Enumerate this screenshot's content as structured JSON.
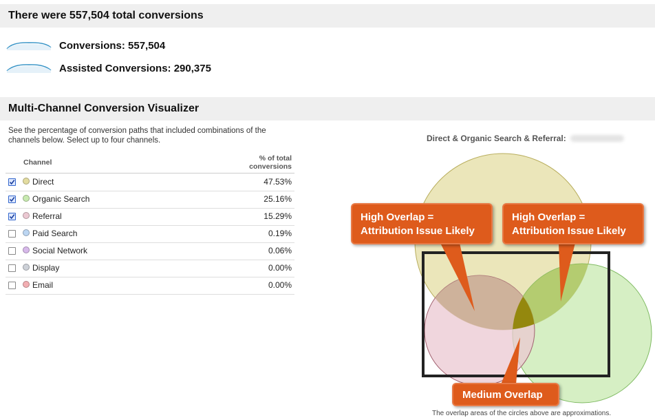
{
  "summary": {
    "heading": "There were 557,504 total conversions",
    "metrics": [
      {
        "label": "Conversions: 557,504"
      },
      {
        "label": "Assisted Conversions: 290,375"
      }
    ]
  },
  "visualizer": {
    "heading": "Multi-Channel Conversion Visualizer",
    "description": "See the percentage of conversion paths that included combinations of the channels below. Select up to four channels.",
    "table": {
      "col_channel": "Channel",
      "col_pct": "% of total conversions",
      "rows": [
        {
          "name": "Direct",
          "pct": "47.53%",
          "checked": true,
          "color": "#e3dca0"
        },
        {
          "name": "Organic Search",
          "pct": "25.16%",
          "checked": true,
          "color": "#c8eab0"
        },
        {
          "name": "Referral",
          "pct": "15.29%",
          "checked": true,
          "color": "#ebc8d2"
        },
        {
          "name": "Paid Search",
          "pct": "0.19%",
          "checked": false,
          "color": "#bcd6f2"
        },
        {
          "name": "Social Network",
          "pct": "0.06%",
          "checked": false,
          "color": "#d7b9ea"
        },
        {
          "name": "Display",
          "pct": "0.00%",
          "checked": false,
          "color": "#cdd1d8"
        },
        {
          "name": "Email",
          "pct": "0.00%",
          "checked": false,
          "color": "#f2aeb2"
        }
      ]
    },
    "diagram_title": "Direct & Organic Search & Referral:",
    "callouts": {
      "left": [
        "High Overlap =",
        "Attribution Issue Likely"
      ],
      "right": [
        "High Overlap =",
        "Attribution Issue Likely"
      ],
      "bottom": "Medium Overlap"
    },
    "footnote": "The overlap areas of the circles above are approximations.",
    "colors": {
      "accent": "#de5b1c",
      "direct": "#e3dca0",
      "organic": "#c8eab0",
      "referral": "#ebc8d2"
    }
  }
}
